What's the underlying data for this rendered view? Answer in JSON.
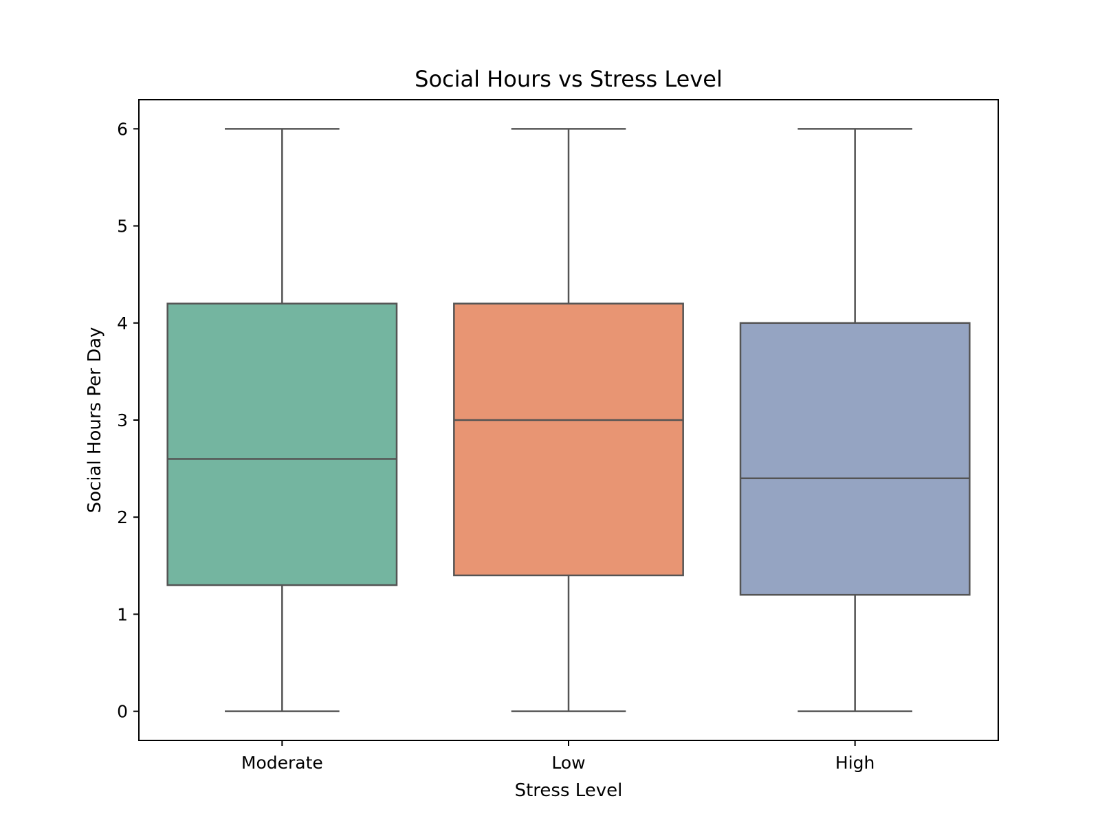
{
  "chart_data": {
    "type": "box",
    "title": "Social Hours vs Stress Level",
    "xlabel": "Stress Level",
    "ylabel": "Social Hours Per Day",
    "ylim": [
      -0.3,
      6.3
    ],
    "yticks": [
      0,
      1,
      2,
      3,
      4,
      5,
      6
    ],
    "grid": false,
    "categories": [
      "Moderate",
      "Low",
      "High"
    ],
    "boxes": [
      {
        "category": "Moderate",
        "min": 0,
        "q1": 1.3,
        "median": 2.6,
        "q3": 4.2,
        "max": 6,
        "color": "#74b5a0"
      },
      {
        "category": "Low",
        "min": 0,
        "q1": 1.4,
        "median": 3.0,
        "q3": 4.2,
        "max": 6,
        "color": "#e89573"
      },
      {
        "category": "High",
        "min": 0,
        "q1": 1.2,
        "median": 2.4,
        "q3": 4.0,
        "max": 6,
        "color": "#95a4c2"
      }
    ],
    "line_color": "#545454"
  }
}
